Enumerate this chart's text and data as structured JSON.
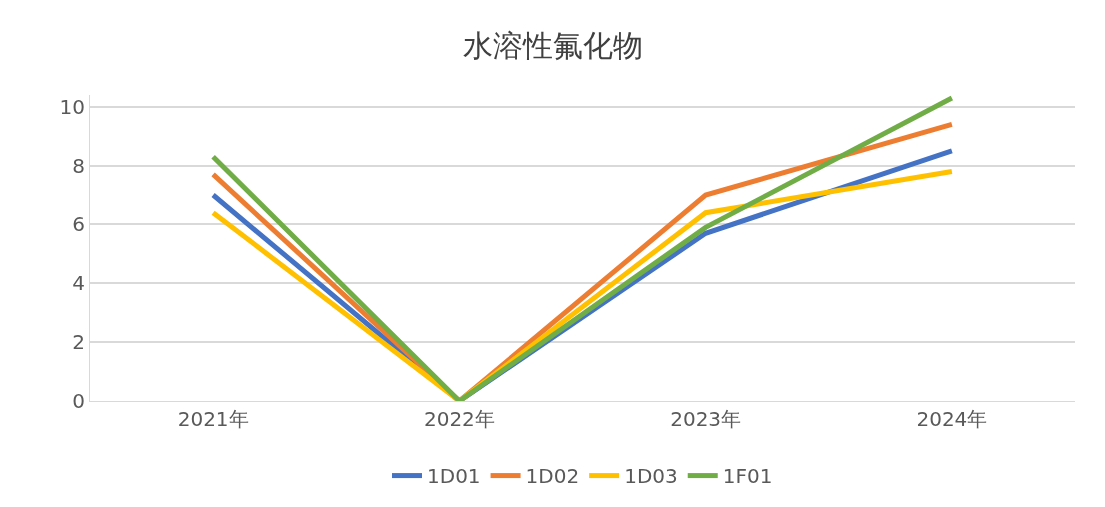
{
  "chart_data": {
    "type": "line",
    "title": "水溶性氟化物",
    "categories": [
      "2021年",
      "2022年",
      "2023年",
      "2024年"
    ],
    "series": [
      {
        "name": "1D01",
        "color": "#4472c4",
        "values": [
          7.0,
          0,
          5.7,
          8.5
        ]
      },
      {
        "name": "1D02",
        "color": "#ed7d31",
        "values": [
          7.7,
          0,
          7.0,
          9.4
        ]
      },
      {
        "name": "1D03",
        "color": "#ffc000",
        "values": [
          6.4,
          0,
          6.4,
          7.8
        ]
      },
      {
        "name": "1F01",
        "color": "#70ad47",
        "values": [
          8.3,
          0,
          5.9,
          10.3
        ]
      }
    ],
    "ylim": [
      0,
      10.4
    ],
    "yticks": [
      0,
      2,
      4,
      6,
      8,
      10
    ],
    "grid": "y",
    "legend": "bottom",
    "marker": "none",
    "line_style": "solid"
  }
}
